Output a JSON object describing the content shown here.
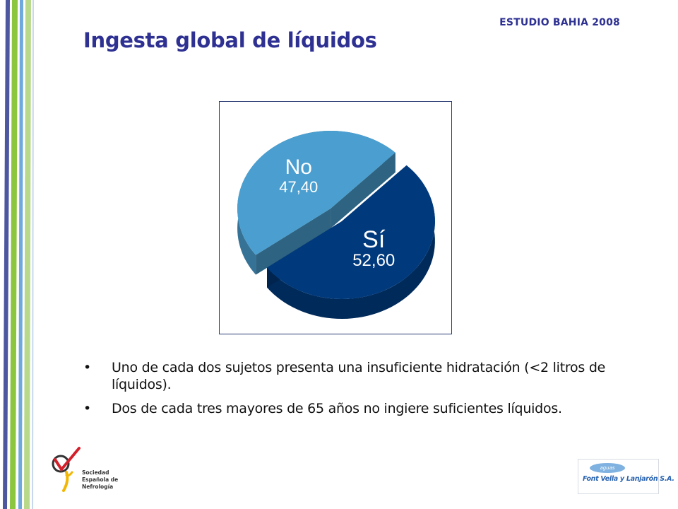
{
  "header": {
    "study_label": "ESTUDIO BAHIA 2008",
    "title": "Ingesta global de líquidos"
  },
  "chart_data": {
    "type": "pie",
    "slices": [
      {
        "label": "No",
        "value": 47.4,
        "value_label": "47,40",
        "color": "#4a9fd0"
      },
      {
        "label": "Sí",
        "value": 52.6,
        "value_label": "52,60",
        "color": "#003a7d"
      }
    ],
    "style": "3d-exploded"
  },
  "bullets": [
    "Uno de cada dos sujetos presenta una insuficiente hidratación (<2 litros de líquidos).",
    "Dos de cada tres mayores de 65 años no ingiere suficientes líquidos."
  ],
  "logos": {
    "left": {
      "lines": [
        "Sociedad",
        "Española de",
        "Nefrología"
      ]
    },
    "right": {
      "tag": "aguas",
      "name": "Font Vella y Lanjarón S.A."
    }
  },
  "colors": {
    "title": "#2e3192",
    "stripes": [
      "#4c57a0",
      "#8cc63f",
      "#6fa8dc",
      "#b9d98a"
    ]
  }
}
